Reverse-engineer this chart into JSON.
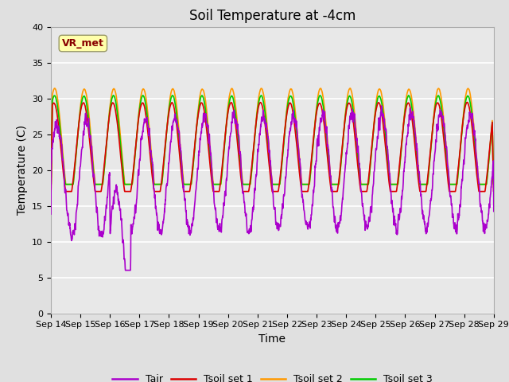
{
  "title": "Soil Temperature at -4cm",
  "xlabel": "Time",
  "ylabel": "Temperature (C)",
  "ylim": [
    0,
    40
  ],
  "yticks": [
    0,
    5,
    10,
    15,
    20,
    25,
    30,
    35,
    40
  ],
  "x_tick_labels": [
    "Sep 14",
    "Sep 15",
    "Sep 16",
    "Sep 17",
    "Sep 18",
    "Sep 19",
    "Sep 20",
    "Sep 21",
    "Sep 22",
    "Sep 23",
    "Sep 24",
    "Sep 25",
    "Sep 26",
    "Sep 27",
    "Sep 28",
    "Sep 29"
  ],
  "colors": {
    "Tair": "#aa00cc",
    "Tsoil_set1": "#dd0000",
    "Tsoil_set2": "#ff9900",
    "Tsoil_set3": "#00cc00"
  },
  "legend_labels": [
    "Tair",
    "Tsoil set 1",
    "Tsoil set 2",
    "Tsoil set 3"
  ],
  "annotation_text": "VR_met",
  "annotation_color": "#880000",
  "annotation_bg": "#ffffaa",
  "annotation_edge": "#999966",
  "fig_facecolor": "#e0e0e0",
  "ax_facecolor": "#e8e8e8",
  "title_fontsize": 12,
  "axis_label_fontsize": 10,
  "tick_fontsize": 8,
  "legend_fontsize": 9,
  "linewidth": 1.2,
  "n_days": 15,
  "n_points_per_day": 144
}
